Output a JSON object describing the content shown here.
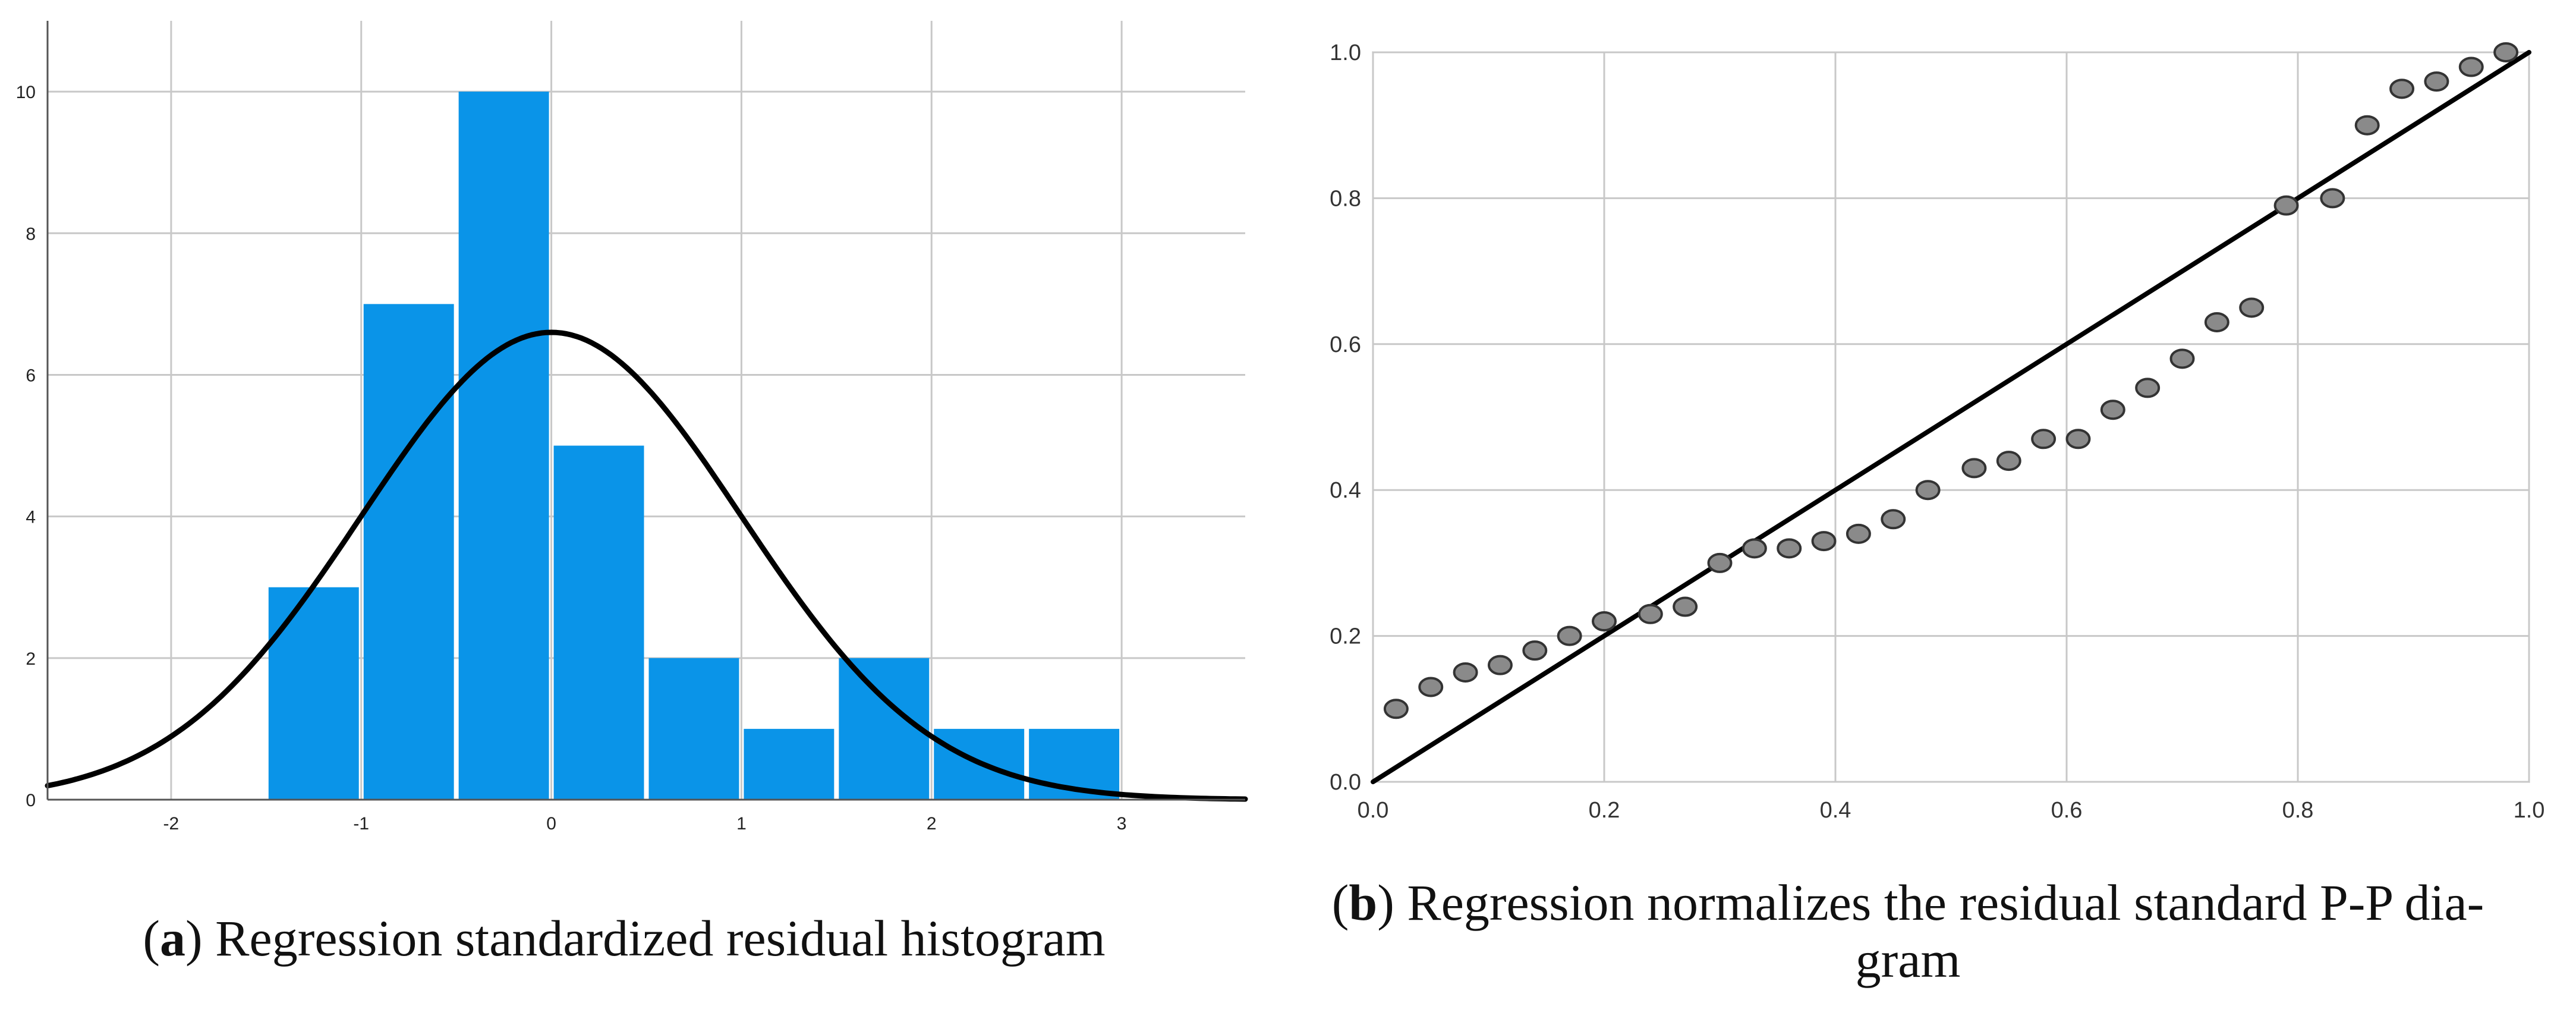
{
  "chart_data": [
    {
      "type": "bar",
      "id": "a",
      "subtype": "histogram",
      "caption_letter": "a",
      "caption_text": " Regression standardized residual histogram",
      "bin_edges": [
        -1.5,
        -1,
        -0.5,
        0,
        0.5,
        1,
        1.5,
        2,
        2.5,
        3
      ],
      "values": [
        3,
        7,
        10,
        5,
        2,
        1,
        2,
        1,
        1
      ],
      "bar_color": "#0a94e8",
      "curve": {
        "type": "normal",
        "mean": 0,
        "sd": 1,
        "peak": 6.6,
        "color": "#000000"
      },
      "xlim": [
        -2.65,
        3.65
      ],
      "ylim": [
        0,
        11
      ],
      "xticks": [
        -2,
        -1,
        0,
        1,
        2,
        3
      ],
      "xtick_labels": [
        "-2",
        "-1",
        "0",
        "1",
        "2",
        "3"
      ],
      "yticks": [
        0,
        2,
        4,
        6,
        8,
        10
      ],
      "ytick_labels": [
        "0",
        "2",
        "4",
        "6",
        "8",
        "10"
      ],
      "grid": true,
      "xlabel": "",
      "ylabel": ""
    },
    {
      "type": "scatter",
      "id": "b",
      "subtype": "p-p plot",
      "caption_letter": "b",
      "caption_line1": " Regression normalizes the residual standard P-P dia-",
      "caption_line2": "gram",
      "x": [
        0.02,
        0.05,
        0.08,
        0.11,
        0.14,
        0.17,
        0.2,
        0.24,
        0.27,
        0.3,
        0.33,
        0.36,
        0.39,
        0.42,
        0.45,
        0.48,
        0.52,
        0.55,
        0.58,
        0.61,
        0.64,
        0.67,
        0.7,
        0.73,
        0.76,
        0.79,
        0.83,
        0.86,
        0.89,
        0.92,
        0.95,
        0.98
      ],
      "y": [
        0.1,
        0.13,
        0.15,
        0.16,
        0.18,
        0.2,
        0.22,
        0.23,
        0.24,
        0.3,
        0.32,
        0.32,
        0.33,
        0.34,
        0.36,
        0.4,
        0.43,
        0.44,
        0.47,
        0.47,
        0.51,
        0.54,
        0.58,
        0.63,
        0.65,
        0.79,
        0.8,
        0.9,
        0.95,
        0.96,
        0.98,
        1.0
      ],
      "point_color": "#8a8a8a",
      "reference_line": [
        [
          0,
          0
        ],
        [
          1,
          1
        ]
      ],
      "xlim": [
        0,
        1
      ],
      "ylim": [
        0,
        1
      ],
      "xticks": [
        0,
        0.2,
        0.4,
        0.6,
        0.8,
        1.0
      ],
      "xtick_labels": [
        "0.0",
        "0.2",
        "0.4",
        "0.6",
        "0.8",
        "1.0"
      ],
      "yticks": [
        0,
        0.2,
        0.4,
        0.6,
        0.8,
        1.0
      ],
      "ytick_labels": [
        "0.0",
        "0.2",
        "0.4",
        "0.6",
        "0.8",
        "1.0"
      ],
      "grid": true,
      "xlabel": "",
      "ylabel": ""
    }
  ]
}
